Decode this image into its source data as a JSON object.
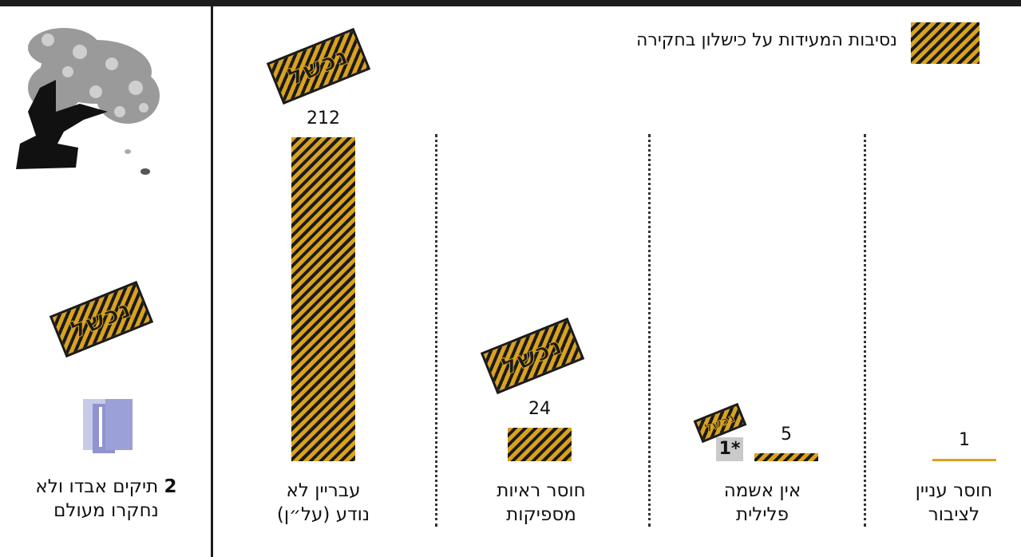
{
  "legend": {
    "label": "נסיבות המעידות על כישלון בחקירה"
  },
  "sticker_text": "נכשל",
  "chart_data": {
    "type": "bar",
    "categories": [
      "חוסר עניין לציבור",
      "אין אשמה פלילית",
      "חוסר ראיות מספיקות",
      "עבריין לא נודע (על״ן)"
    ],
    "values": [
      1,
      5,
      24,
      212
    ],
    "value_labels": [
      "1",
      "5",
      "24",
      "212"
    ],
    "failed_marked": [
      false,
      true,
      true,
      true
    ],
    "footnote_marker": "1*",
    "lost_files": {
      "count": "2",
      "text_rest": "תיקים אבדו ולא נחקרו מעולם"
    },
    "colors": {
      "bar_gold": "#d9a21e",
      "bar_dark": "#1a1a1a"
    }
  },
  "categories_display": [
    {
      "line1": "חוסר עניין",
      "line2": "לציבור"
    },
    {
      "line1": "אין אשמה",
      "line2": "פלילית"
    },
    {
      "line1": "חוסר ראיות",
      "line2": "מספיקות"
    },
    {
      "line1": "עבריין לא",
      "line2": "נודע (על״ן)"
    }
  ]
}
